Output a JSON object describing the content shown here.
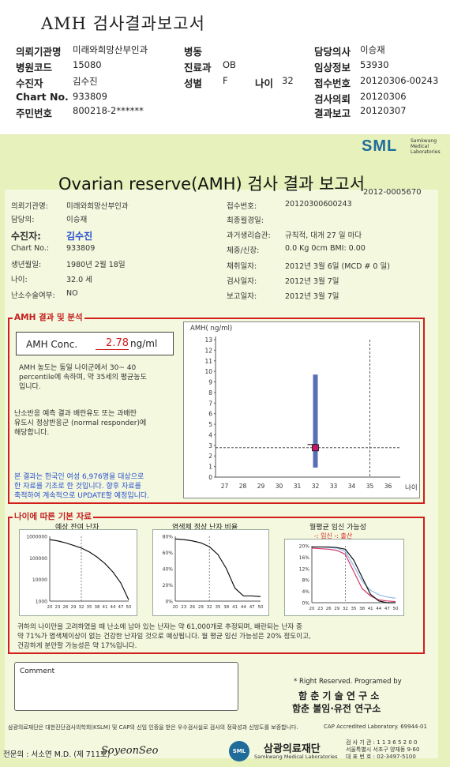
{
  "header": {
    "title": "AMH 검사결과보고서",
    "rows": [
      {
        "k1": "의뢰기관명",
        "v1": "미래와희망산부인과",
        "k2": "병동",
        "v2": "",
        "k3": "담당의사",
        "v3": "이승재"
      },
      {
        "k1": "병원코드",
        "v1": "15080",
        "k2": "진료과",
        "v2": "OB",
        "k3": "임상정보",
        "v3": "53930"
      },
      {
        "k1": "수진자",
        "v1": "김수진",
        "k2": "성별",
        "v2": "F",
        "k2b": "나이",
        "v2b": "32",
        "k3": "접수번호",
        "v3": "20120306-00243"
      },
      {
        "k1": "Chart No.",
        "v1": "933809",
        "k2": "",
        "v2": "",
        "k3": "검사의뢰",
        "v3": "20120306"
      },
      {
        "k1": "주민번호",
        "v1": "800218-2******",
        "k2": "",
        "v2": "",
        "k3": "결과보고",
        "v3": "20120307"
      }
    ]
  },
  "report": {
    "logo": "SML",
    "logo_sub": [
      "Samkwang",
      "Medical",
      "Laboratories"
    ],
    "title": "Ovarian reserve(AMH) 검사 결과 보고서",
    "report_no": "2012-0005670",
    "left_info": [
      {
        "k": "의뢰기관명:",
        "v": "미래와희망산부인과"
      },
      {
        "k": "담당의:",
        "v": "이승재"
      },
      {
        "k": "수진자:",
        "v": "김수진"
      },
      {
        "k": "Chart No.:",
        "v": "933809"
      },
      {
        "k": "생년월일:",
        "v": "1980년 2월 18일"
      },
      {
        "k": "나이:",
        "v": "32.0 세"
      },
      {
        "k": "난소수술여부:",
        "v": "NO"
      }
    ],
    "right_info": [
      {
        "k": "접수번호:",
        "v": "20120300600243"
      },
      {
        "k": "최종월경일:",
        "v": ""
      },
      {
        "k": "과거생리습관:",
        "v": "규칙적, 대개   27 일 마다"
      },
      {
        "k": "체중/신장:",
        "v": "0.0 Kg      0cm    BMI:    0.00"
      },
      {
        "k": "채취일자:",
        "v": "2012년 3월 6일   (MCD #  0 일)"
      },
      {
        "k": "검사일자:",
        "v": "2012년 3월 7일"
      },
      {
        "k": "보고일자:",
        "v": "2012년 3월 7일"
      }
    ],
    "section1_title": "AMH 결과 및 분석",
    "amh_label": "AMH Conc.",
    "amh_value": "2.78",
    "amh_unit": "ng/ml",
    "analysis_lines": [
      "AMH 농도는 동일 나이군에서   30~ 40",
      "percentile에 속하며, 약  35세의 평균농도",
      "입니다."
    ],
    "analysis2_lines": [
      "난소반응 예측 결과 배란유도 또는 과배란",
      "유도시 정상반응군 (normal responder)에",
      "해당합니다."
    ],
    "notice_lines": [
      "본 결과는 한국인 여성 6,976명을 대상으로",
      "한 자료를 기초로 한 것입니다. 향후 자료를",
      "축적하여 계속적으로 UPDATE할 예정입니다."
    ],
    "section2_title": "나이에 따른 기본 자료",
    "mini1_title": "예상 잔여 난자",
    "mini2_title": "염색체 정상 난자 비율",
    "mini3_title": "월평균 임신 가능성",
    "mini3_legend": "-: 임신 -: 출산",
    "summary_lines": [
      "귀하의 나이만을 고려하였을 때 난소에 남아 있는 난자는 약     61,000개로 추정되며, 배란되는 난자 중",
      "약  71%가 염색체이상이 없는 건강한 난자일 것으로 예상됩니다. 월 평균 임신 가능성은  20% 정도이고,",
      "건강하게 분만할 가능성은 약   17%입니다."
    ],
    "comment_label": "Comment",
    "rights_line": "* Right Reserved. Programed by",
    "inst1": "함 춘  기 술  연 구 소",
    "inst2": "함춘 불임·유전 연구소",
    "footer_note": "삼광의료재단은 대한진단검사의학회(KSLM) 및 CAP의 신임 인증을 받은 우수검사실로 검사의 정확성과 신빙도를 보증합니다.",
    "cap": "CAP  Accredited  Laboratory.  69944-01",
    "doctor": "전문의 : 서소연 M.D. (제 711호)",
    "signature": "SoyeonSeo",
    "foundation": "삼광의료재단",
    "foundation_sub": "Samkwang Medical Laboratories",
    "contact": [
      "검 사 기 관 : 1 1 3 6 5 2 0 0",
      "서울특별시 서초구 양재동 9-60",
      "대 표 번 호 : 02-3497-5100"
    ]
  },
  "chart_data": [
    {
      "type": "scatter",
      "title": "",
      "ylabel": "AMH( ng/ml)",
      "xlabel": "나이",
      "x_ticks": [
        27,
        28,
        29,
        30,
        31,
        32,
        33,
        34,
        35,
        36
      ],
      "y_ticks": [
        0,
        1,
        2,
        3,
        4,
        5,
        6,
        7,
        8,
        9,
        10,
        11,
        12,
        13
      ],
      "xlim": [
        26.5,
        36.5
      ],
      "ylim": [
        0,
        13
      ],
      "range_bar": {
        "x": 32,
        "low": 0.9,
        "high": 9.7
      },
      "point": {
        "x": 32,
        "y": 2.78
      },
      "ref_line_y": 2.78,
      "ref_line_x": 35
    },
    {
      "type": "line",
      "title": "예상 잔여 난자",
      "log_scale": true,
      "y_ticks": [
        "1000000",
        "100000",
        "10000",
        "1000"
      ],
      "x_ticks": [
        20,
        23,
        26,
        29,
        32,
        35,
        38,
        41,
        44,
        47,
        50
      ],
      "marker_x": 32
    },
    {
      "type": "line",
      "title": "염색체 정상 난자 비율",
      "y_ticks": [
        "80%",
        "60%",
        "40%",
        "20%",
        "0%"
      ],
      "x_ticks": [
        20,
        23,
        26,
        29,
        32,
        35,
        38,
        41,
        44,
        47,
        50
      ],
      "marker_x": 32
    },
    {
      "type": "line",
      "title": "월평균 임신 가능성",
      "y_ticks": [
        "20%",
        "16%",
        "12%",
        "8%",
        "4%",
        "0%"
      ],
      "x_ticks": [
        20,
        23,
        26,
        29,
        32,
        35,
        38,
        41,
        44,
        47,
        50
      ],
      "marker_x": 32,
      "series": [
        {
          "name": "임신"
        },
        {
          "name": "출산"
        }
      ]
    }
  ],
  "colors": {
    "green_bg": "#e6f1bb",
    "red": "#d21d1d",
    "blue_text": "#2a4fcf",
    "range_bar": "#5a6fb3",
    "point": "#c01a6a",
    "sml_blue": "#1f6c9a"
  }
}
